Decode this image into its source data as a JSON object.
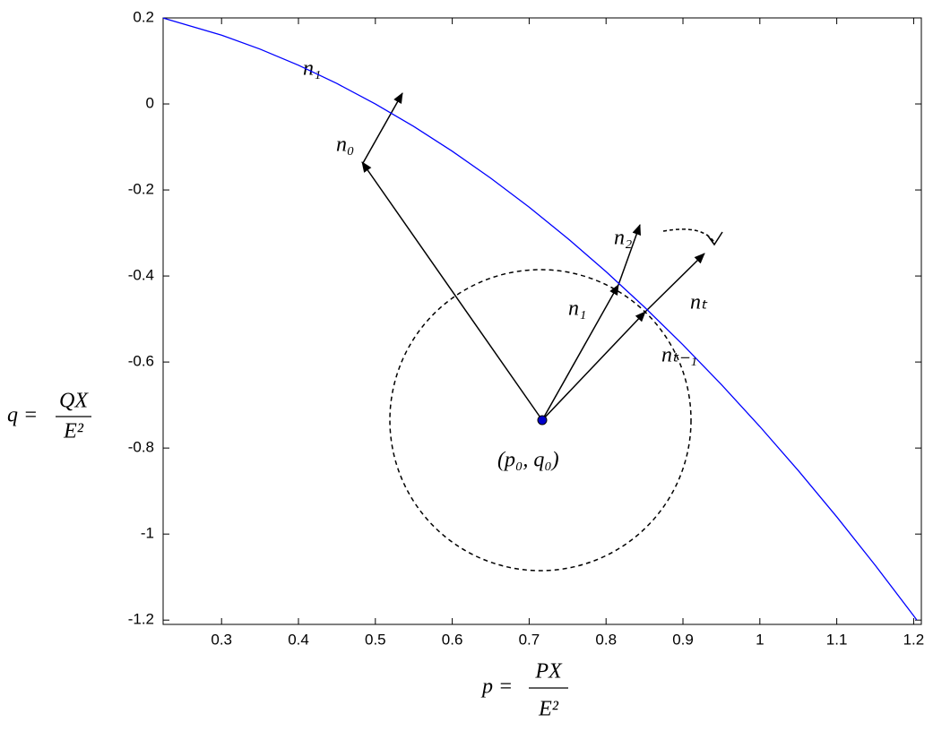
{
  "chart_data": {
    "type": "line",
    "x": [
      0.224,
      0.3,
      0.35,
      0.4,
      0.45,
      0.5,
      0.55,
      0.6,
      0.65,
      0.7,
      0.75,
      0.8,
      0.85,
      0.9,
      0.95,
      1.0,
      1.05,
      1.1,
      1.15,
      1.2,
      1.204
    ],
    "series": [
      {
        "color": "#0000ff",
        "values": [
          0.1998,
          0.16,
          0.1275,
          0.09,
          0.0475,
          0,
          -0.0525,
          -0.11,
          -0.1725,
          -0.24,
          -0.3125,
          -0.39,
          -0.4725,
          -0.56,
          -0.6525,
          -0.75,
          -0.8525,
          -0.96,
          -1.0725,
          -1.19,
          -1.1996
        ]
      }
    ],
    "xlim": [
      0.224,
      1.21
    ],
    "ylim": [
      -1.21,
      0.2
    ],
    "xticks": [
      0.3,
      0.4,
      0.5,
      0.6,
      0.7,
      0.8,
      0.9,
      1,
      1.1,
      1.2
    ],
    "yticks": [
      0.2,
      0,
      -0.2,
      -0.4,
      -0.6,
      -0.8,
      -1,
      -1.2
    ],
    "xlabel": {
      "lhs": "p =",
      "num": "PX",
      "den": "E²"
    },
    "ylabel": {
      "lhs": "q =",
      "num": "QX",
      "den": "E²"
    },
    "annotations": [
      "n₁",
      "n₀",
      "n₂",
      "n₁",
      "nₜ",
      "nₜ₋₁",
      "(p₀, q₀)"
    ]
  }
}
